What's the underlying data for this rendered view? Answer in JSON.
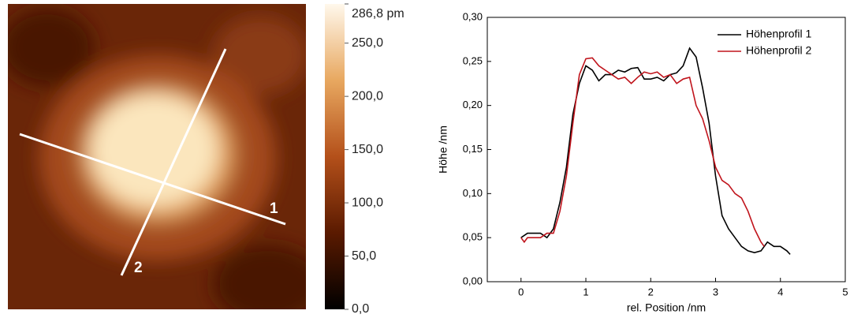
{
  "chart_data": [
    {
      "type": "heatmap",
      "annotations": [
        "1",
        "2"
      ],
      "zlim": [
        0,
        286.8
      ],
      "zticks": [
        {
          "value": 286.8,
          "label": "286,8 pm"
        },
        {
          "value": 250,
          "label": "250,0"
        },
        {
          "value": 200,
          "label": "200,0"
        },
        {
          "value": 150,
          "label": "150,0"
        },
        {
          "value": 100,
          "label": "100,0"
        },
        {
          "value": 50,
          "label": "50,0"
        },
        {
          "value": 0,
          "label": "0,0"
        }
      ]
    },
    {
      "type": "line",
      "xlabel": "rel. Position /nm",
      "ylabel": "Höhe /nm",
      "legend": "upper right",
      "xlim": [
        -0.52,
        5
      ],
      "ylim": [
        0,
        0.3
      ],
      "xticks": [
        0,
        1,
        2,
        3,
        4,
        5
      ],
      "yticks": [
        {
          "value": 0,
          "label": "0,00"
        },
        {
          "value": 0.05,
          "label": "0,05"
        },
        {
          "value": 0.1,
          "label": "0,10"
        },
        {
          "value": 0.15,
          "label": "0,15"
        },
        {
          "value": 0.2,
          "label": "0,20"
        },
        {
          "value": 0.25,
          "label": "0,25"
        },
        {
          "value": 0.3,
          "label": "0,30"
        }
      ],
      "series": [
        {
          "name": "Höhenprofil 1",
          "color": "#000000",
          "x": [
            0,
            0.1,
            0.2,
            0.3,
            0.4,
            0.5,
            0.6,
            0.7,
            0.8,
            0.9,
            1.0,
            1.1,
            1.2,
            1.3,
            1.4,
            1.5,
            1.6,
            1.7,
            1.8,
            1.9,
            2.0,
            2.1,
            2.2,
            2.3,
            2.4,
            2.5,
            2.6,
            2.7,
            2.8,
            2.9,
            3.0,
            3.1,
            3.2,
            3.3,
            3.4,
            3.5,
            3.6,
            3.7,
            3.8,
            3.9,
            4.0,
            4.1,
            4.15
          ],
          "values": [
            0.05,
            0.055,
            0.055,
            0.055,
            0.05,
            0.06,
            0.09,
            0.13,
            0.19,
            0.225,
            0.245,
            0.24,
            0.228,
            0.235,
            0.235,
            0.24,
            0.238,
            0.242,
            0.243,
            0.23,
            0.23,
            0.232,
            0.228,
            0.235,
            0.237,
            0.245,
            0.265,
            0.255,
            0.22,
            0.18,
            0.12,
            0.075,
            0.06,
            0.05,
            0.04,
            0.035,
            0.033,
            0.035,
            0.045,
            0.04,
            0.04,
            0.035,
            0.031
          ]
        },
        {
          "name": "Höhenprofil 2",
          "color": "#c0141c",
          "x": [
            0,
            0.05,
            0.1,
            0.2,
            0.3,
            0.4,
            0.5,
            0.6,
            0.7,
            0.8,
            0.9,
            1.0,
            1.1,
            1.2,
            1.3,
            1.4,
            1.5,
            1.6,
            1.7,
            1.8,
            1.9,
            2.0,
            2.1,
            2.2,
            2.3,
            2.4,
            2.5,
            2.6,
            2.7,
            2.8,
            2.9,
            3.0,
            3.1,
            3.2,
            3.3,
            3.4,
            3.5,
            3.6,
            3.7,
            3.75
          ],
          "values": [
            0.05,
            0.045,
            0.05,
            0.05,
            0.05,
            0.055,
            0.055,
            0.08,
            0.12,
            0.18,
            0.235,
            0.253,
            0.254,
            0.245,
            0.24,
            0.235,
            0.23,
            0.232,
            0.225,
            0.232,
            0.238,
            0.236,
            0.238,
            0.232,
            0.235,
            0.225,
            0.23,
            0.232,
            0.2,
            0.185,
            0.16,
            0.13,
            0.115,
            0.11,
            0.1,
            0.095,
            0.08,
            0.06,
            0.045,
            0.04
          ]
        }
      ]
    }
  ]
}
